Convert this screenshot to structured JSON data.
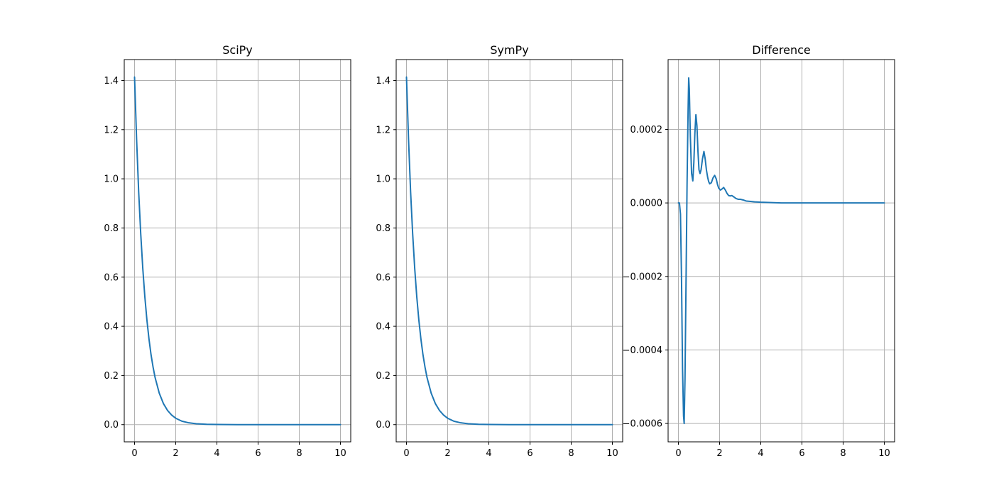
{
  "chart_data": [
    {
      "type": "line",
      "title": "SciPy",
      "xlim": [
        -0.5,
        10.5
      ],
      "ylim": [
        -0.07,
        1.485
      ],
      "xticks": [
        "0",
        "2",
        "4",
        "6",
        "8",
        "10"
      ],
      "yticks": [
        "0.0",
        "0.2",
        "0.4",
        "0.6",
        "0.8",
        "1.0",
        "1.2",
        "1.4"
      ],
      "grid": true,
      "color": "#1f77b4",
      "series": [
        {
          "x": [
            0,
            0.1,
            0.2,
            0.3,
            0.4,
            0.5,
            0.6,
            0.7,
            0.8,
            0.9,
            1.0,
            1.2,
            1.4,
            1.6,
            1.8,
            2.0,
            2.3,
            2.6,
            3.0,
            3.5,
            4.0,
            5.0,
            6.0,
            7.0,
            8.0,
            9.0,
            10.0
          ],
          "y": [
            1.414,
            1.16,
            0.948,
            0.777,
            0.636,
            0.52,
            0.426,
            0.349,
            0.285,
            0.234,
            0.191,
            0.128,
            0.086,
            0.058,
            0.039,
            0.026,
            0.014,
            0.008,
            0.0035,
            0.0013,
            0.0005,
            0.0001,
            0.0,
            0.0,
            0.0,
            0.0,
            0.0
          ]
        }
      ]
    },
    {
      "type": "line",
      "title": "SymPy",
      "xlim": [
        -0.5,
        10.5
      ],
      "ylim": [
        -0.07,
        1.485
      ],
      "xticks": [
        "0",
        "2",
        "4",
        "6",
        "8",
        "10"
      ],
      "yticks": [
        "0.0",
        "0.2",
        "0.4",
        "0.6",
        "0.8",
        "1.0",
        "1.2",
        "1.4"
      ],
      "grid": true,
      "color": "#1f77b4",
      "series": [
        {
          "x": [
            0,
            0.1,
            0.2,
            0.3,
            0.4,
            0.5,
            0.6,
            0.7,
            0.8,
            0.9,
            1.0,
            1.2,
            1.4,
            1.6,
            1.8,
            2.0,
            2.3,
            2.6,
            3.0,
            3.5,
            4.0,
            5.0,
            6.0,
            7.0,
            8.0,
            9.0,
            10.0
          ],
          "y": [
            1.414,
            1.16,
            0.948,
            0.777,
            0.636,
            0.52,
            0.426,
            0.349,
            0.285,
            0.234,
            0.191,
            0.128,
            0.086,
            0.058,
            0.039,
            0.026,
            0.014,
            0.008,
            0.0035,
            0.0013,
            0.0005,
            0.0001,
            0.0,
            0.0,
            0.0,
            0.0,
            0.0
          ]
        }
      ]
    },
    {
      "type": "line",
      "title": "Difference",
      "xlim": [
        -0.5,
        10.5
      ],
      "ylim": [
        -0.00065,
        0.00039
      ],
      "xticks": [
        "0",
        "2",
        "4",
        "6",
        "8",
        "10"
      ],
      "yticks": [
        "−0.0006",
        "−0.0004",
        "−0.0002",
        "0.0000",
        "0.0002"
      ],
      "grid": true,
      "color": "#1f77b4",
      "series": [
        {
          "x": [
            0,
            0.05,
            0.1,
            0.15,
            0.2,
            0.25,
            0.28,
            0.32,
            0.37,
            0.42,
            0.47,
            0.5,
            0.53,
            0.58,
            0.64,
            0.7,
            0.75,
            0.8,
            0.85,
            0.9,
            0.95,
            1.0,
            1.05,
            1.1,
            1.17,
            1.24,
            1.3,
            1.36,
            1.42,
            1.47,
            1.52,
            1.6,
            1.68,
            1.76,
            1.84,
            1.9,
            1.96,
            2.04,
            2.12,
            2.2,
            2.28,
            2.36,
            2.44,
            2.52,
            2.6,
            2.7,
            2.8,
            2.9,
            3.0,
            3.15,
            3.3,
            3.5,
            3.7,
            4.0,
            4.5,
            5.0,
            6.0,
            7.0,
            8.0,
            9.0,
            10.0
          ],
          "y": [
            0.0,
            0.0,
            -3e-05,
            -0.0002,
            -0.00045,
            -0.00058,
            -0.0006,
            -0.00048,
            -0.00022,
            5e-05,
            0.00025,
            0.00034,
            0.00031,
            0.00018,
            8e-05,
            6e-05,
            0.00011,
            0.00019,
            0.00024,
            0.00021,
            0.00014,
            9e-05,
            8e-05,
            9e-05,
            0.00012,
            0.00014,
            0.00012,
            9e-05,
            7e-05,
            5.8e-05,
            5.2e-05,
            5.5e-05,
            6.8e-05,
            7.5e-05,
            6.5e-05,
            5e-05,
            4e-05,
            3.5e-05,
            3.8e-05,
            4.2e-05,
            3.5e-05,
            2.6e-05,
            2e-05,
            1.9e-05,
            2e-05,
            1.6e-05,
            1.2e-05,
            1e-05,
            1e-05,
            8e-06,
            5e-06,
            4e-06,
            3e-06,
            2e-06,
            1e-06,
            0.0,
            0.0,
            0.0,
            0.0,
            0.0,
            0.0
          ]
        }
      ]
    }
  ]
}
